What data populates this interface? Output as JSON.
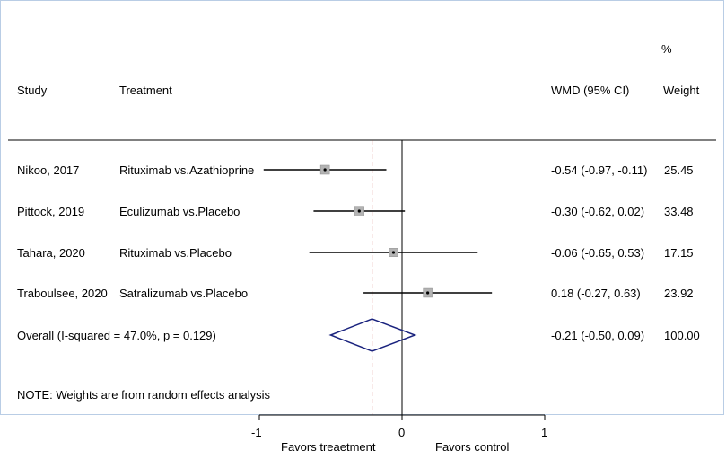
{
  "header": {
    "study": "Study",
    "treatment": "Treatment",
    "effect": "WMD (95% CI)",
    "weight_pct": "%",
    "weight": "Weight"
  },
  "rows": [
    {
      "study": "Nikoo, 2017",
      "treatment": "Rituximab vs.Azathioprine",
      "ci_text": "-0.54 (-0.97, -0.11)",
      "weight": "25.45"
    },
    {
      "study": "Pittock, 2019",
      "treatment": "Eculizumab vs.Placebo",
      "ci_text": "-0.30 (-0.62, 0.02)",
      "weight": "33.48"
    },
    {
      "study": "Tahara, 2020",
      "treatment": "Rituximab vs.Placebo",
      "ci_text": "-0.06 (-0.65, 0.53)",
      "weight": "17.15"
    },
    {
      "study": "Traboulsee, 2020",
      "treatment": "Satralizumab vs.Placebo",
      "ci_text": "0.18 (-0.27, 0.63)",
      "weight": "23.92"
    }
  ],
  "overall": {
    "label": "Overall  (I-squared = 47.0%, p = 0.129)",
    "ci_text": "-0.21 (-0.50, 0.09)",
    "weight": "100.00"
  },
  "note": "NOTE: Weights are from random effects analysis",
  "axis": {
    "ticks": [
      "-1",
      "0",
      "1"
    ],
    "left_label": "Favors treaetment",
    "right_label": "Favors control"
  },
  "colors": {
    "ci_line": "#000000",
    "box": "#b3b3b3",
    "diamond": "#1a237e",
    "overall_line": "#c0392b",
    "frame": "#b9cde5"
  },
  "chart_data": {
    "type": "forest",
    "xlim": [
      -1,
      1
    ],
    "null_value": 0,
    "studies": [
      {
        "name": "Nikoo, 2017",
        "estimate": -0.54,
        "lower": -0.97,
        "upper": -0.11,
        "weight": 25.45
      },
      {
        "name": "Pittock, 2019",
        "estimate": -0.3,
        "lower": -0.62,
        "upper": 0.02,
        "weight": 33.48
      },
      {
        "name": "Tahara, 2020",
        "estimate": -0.06,
        "lower": -0.65,
        "upper": 0.53,
        "weight": 17.15
      },
      {
        "name": "Traboulsee, 2020",
        "estimate": 0.18,
        "lower": -0.27,
        "upper": 0.63,
        "weight": 23.92
      }
    ],
    "overall": {
      "estimate": -0.21,
      "lower": -0.5,
      "upper": 0.09
    }
  }
}
